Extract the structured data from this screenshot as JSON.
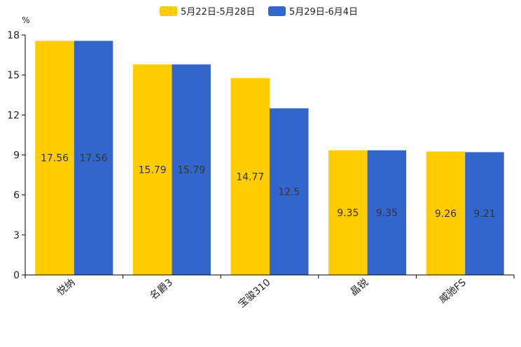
{
  "chart_data": {
    "type": "bar",
    "title": "",
    "xlabel": "",
    "ylabel": "%",
    "ylim": [
      0,
      18
    ],
    "yticks": [
      0,
      3,
      6,
      9,
      12,
      15,
      18
    ],
    "grid": false,
    "legend_position": "top-center",
    "categories": [
      "悦纳",
      "名爵3",
      "宝骏310",
      "晶锐",
      "威驰FS"
    ],
    "series": [
      {
        "name": "5月22日-5月28日",
        "color": "#ffcc00",
        "values": [
          17.56,
          15.79,
          14.77,
          9.35,
          9.26
        ]
      },
      {
        "name": "5月29日-6月4日",
        "color": "#3366cc",
        "values": [
          17.56,
          15.79,
          12.5,
          9.35,
          9.21
        ]
      }
    ],
    "data_labels": [
      [
        "17.56",
        "15.79",
        "14.77",
        "9.35",
        "9.26"
      ],
      [
        "17.56",
        "15.79",
        "12.5",
        "9.35",
        "9.21"
      ]
    ]
  }
}
